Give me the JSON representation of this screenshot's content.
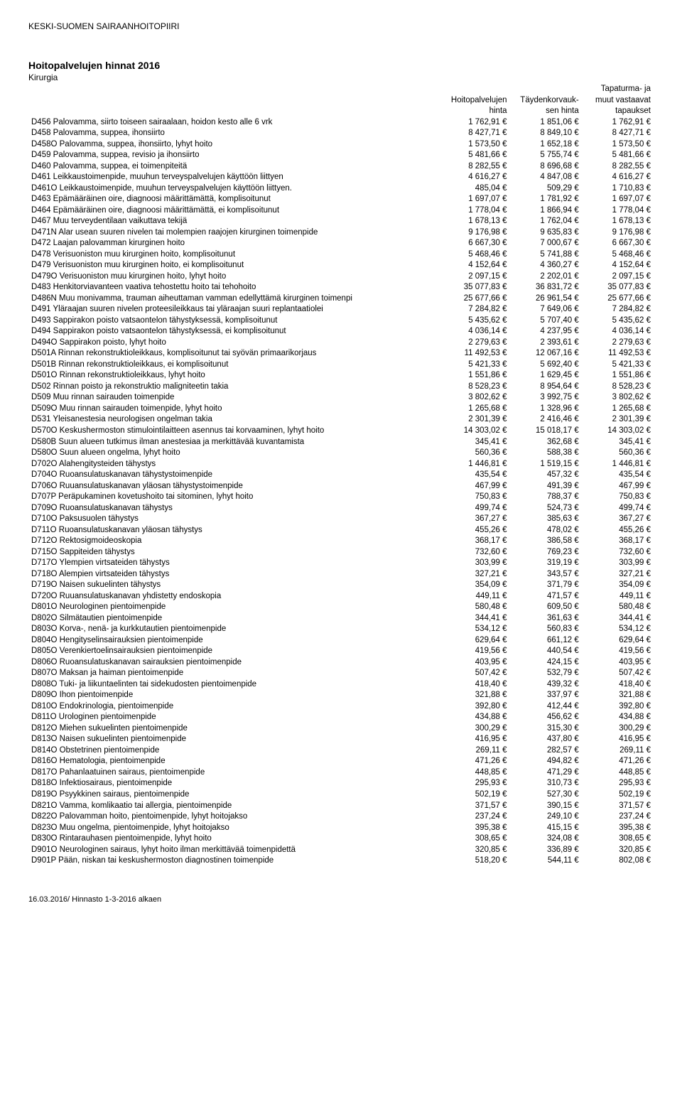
{
  "header": "KESKI-SUOMEN SAIRAANHOITOPIIRI",
  "title": "Hoitopalvelujen hinnat 2016",
  "subtitle": "Kirurgia",
  "columns": [
    {
      "l1": "",
      "l2": "Hoitopalvelujen",
      "l3": "hinta"
    },
    {
      "l1": "",
      "l2": "Täydenkorvauk-",
      "l3": "sen hinta"
    },
    {
      "l1": "Tapaturma- ja",
      "l2": "muut vastaavat",
      "l3": "tapaukset"
    }
  ],
  "rows": [
    {
      "desc": "D456 Palovamma, siirto toiseen sairaalaan, hoidon kesto alle 6 vrk",
      "c1": "1 762,91 €",
      "c2": "1 851,06 €",
      "c3": "1 762,91 €"
    },
    {
      "desc": "D458 Palovamma, suppea, ihonsiirto",
      "c1": "8 427,71 €",
      "c2": "8 849,10 €",
      "c3": "8 427,71 €"
    },
    {
      "desc": "D458O Palovamma, suppea, ihonsiirto, lyhyt hoito",
      "c1": "1 573,50 €",
      "c2": "1 652,18 €",
      "c3": "1 573,50 €"
    },
    {
      "desc": "D459 Palovamma, suppea, revisio ja ihonsiirto",
      "c1": "5 481,66 €",
      "c2": "5 755,74 €",
      "c3": "5 481,66 €"
    },
    {
      "desc": "D460 Palovamma, suppea, ei toimenpiteitä",
      "c1": "8 282,55 €",
      "c2": "8 696,68 €",
      "c3": "8 282,55 €"
    },
    {
      "desc": "D461 Leikkaustoimenpide, muuhun terveyspalvelujen käyttöön liittyen",
      "c1": "4 616,27 €",
      "c2": "4 847,08 €",
      "c3": "4 616,27 €"
    },
    {
      "desc": "D461O Leikkaustoimenpide, muuhun terveyspalvelujen käyttöön liittyen.",
      "c1": "485,04 €",
      "c2": "509,29 €",
      "c3": "1 710,83 €"
    },
    {
      "desc": "D463 Epämääräinen oire, diagnoosi määrittämättä, komplisoitunut",
      "c1": "1 697,07 €",
      "c2": "1 781,92 €",
      "c3": "1 697,07 €"
    },
    {
      "desc": "D464 Epämääräinen oire, diagnoosi määrittämättä, ei komplisoitunut",
      "c1": "1 778,04 €",
      "c2": "1 866,94 €",
      "c3": "1 778,04 €"
    },
    {
      "desc": "D467 Muu terveydentilaan vaikuttava tekijä",
      "c1": "1 678,13 €",
      "c2": "1 762,04 €",
      "c3": "1 678,13 €"
    },
    {
      "desc": "D471N Alar usean suuren nivelen tai molempien raajojen kirurginen toimenpide",
      "c1": "9 176,98 €",
      "c2": "9 635,83 €",
      "c3": "9 176,98 €"
    },
    {
      "desc": "D472 Laajan palovamman kirurginen hoito",
      "c1": "6 667,30 €",
      "c2": "7 000,67 €",
      "c3": "6 667,30 €"
    },
    {
      "desc": "D478 Verisuoniston muu kirurginen hoito, komplisoitunut",
      "c1": "5 468,46 €",
      "c2": "5 741,88 €",
      "c3": "5 468,46 €"
    },
    {
      "desc": "D479 Verisuoniston muu kirurginen hoito, ei komplisoitunut",
      "c1": "4 152,64 €",
      "c2": "4 360,27 €",
      "c3": "4 152,64 €"
    },
    {
      "desc": "D479O Verisuoniston muu kirurginen hoito, lyhyt hoito",
      "c1": "2 097,15 €",
      "c2": "2 202,01 €",
      "c3": "2 097,15 €"
    },
    {
      "desc": "D483 Henkitorviavanteen vaativa tehostettu hoito tai tehohoito",
      "c1": "35 077,83 €",
      "c2": "36 831,72 €",
      "c3": "35 077,83 €"
    },
    {
      "desc": "D486N Muu monivamma, trauman aiheuttaman vamman edellyttämä kirurginen toimenpi",
      "c1": "25 677,66 €",
      "c2": "26 961,54 €",
      "c3": "25 677,66 €"
    },
    {
      "desc": "D491 Yläraajan suuren nivelen proteesileikkaus tai yläraajan suuri replantaatiolei",
      "c1": "7 284,82 €",
      "c2": "7 649,06 €",
      "c3": "7 284,82 €"
    },
    {
      "desc": "D493 Sappirakon poisto vatsaontelon tähystyksessä, komplisoitunut",
      "c1": "5 435,62 €",
      "c2": "5 707,40 €",
      "c3": "5 435,62 €"
    },
    {
      "desc": "D494 Sappirakon poisto vatsaontelon tähystyksessä, ei komplisoitunut",
      "c1": "4 036,14 €",
      "c2": "4 237,95 €",
      "c3": "4 036,14 €"
    },
    {
      "desc": "D494O Sappirakon poisto, lyhyt hoito",
      "c1": "2 279,63 €",
      "c2": "2 393,61 €",
      "c3": "2 279,63 €"
    },
    {
      "desc": "D501A Rinnan rekonstruktioleikkaus, komplisoitunut tai syövän primaarikorjaus",
      "c1": "11 492,53 €",
      "c2": "12 067,16 €",
      "c3": "11 492,53 €"
    },
    {
      "desc": "D501B Rinnan rekonstruktioleikkaus, ei komplisoitunut",
      "c1": "5 421,33 €",
      "c2": "5 692,40 €",
      "c3": "5 421,33 €"
    },
    {
      "desc": "D501O Rinnan rekonstruktioleikkaus, lyhyt hoito",
      "c1": "1 551,86 €",
      "c2": "1 629,45 €",
      "c3": "1 551,86 €"
    },
    {
      "desc": "D502 Rinnan poisto ja rekonstruktio maligniteetin takia",
      "c1": "8 528,23 €",
      "c2": "8 954,64 €",
      "c3": "8 528,23 €"
    },
    {
      "desc": "D509 Muu rinnan sairauden toimenpide",
      "c1": "3 802,62 €",
      "c2": "3 992,75 €",
      "c3": "3 802,62 €"
    },
    {
      "desc": "D509O Muu rinnan sairauden toimenpide, lyhyt hoito",
      "c1": "1 265,68 €",
      "c2": "1 328,96 €",
      "c3": "1 265,68 €"
    },
    {
      "desc": "D531 Yleisanestesia neurologisen ongelman takia",
      "c1": "2 301,39 €",
      "c2": "2 416,46 €",
      "c3": "2 301,39 €"
    },
    {
      "desc": "D570O Keskushermoston stimulointilaitteen asennus tai korvaaminen, lyhyt hoito",
      "c1": "14 303,02 €",
      "c2": "15 018,17 €",
      "c3": "14 303,02 €"
    },
    {
      "desc": "D580B Suun alueen tutkimus ilman anestesiaa ja merkittävää kuvantamista",
      "c1": "345,41 €",
      "c2": "362,68 €",
      "c3": "345,41 €"
    },
    {
      "desc": "D580O Suun alueen ongelma, lyhyt hoito",
      "c1": "560,36 €",
      "c2": "588,38 €",
      "c3": "560,36 €"
    },
    {
      "desc": "D702O Alahengitysteiden tähystys",
      "c1": "1 446,81 €",
      "c2": "1 519,15 €",
      "c3": "1 446,81 €"
    },
    {
      "desc": "D704O Ruoansulatuskanavan tähystystoimenpide",
      "c1": "435,54 €",
      "c2": "457,32 €",
      "c3": "435,54 €"
    },
    {
      "desc": "D706O Ruuansulatuskanavan yläosan tähystystoimenpide",
      "c1": "467,99 €",
      "c2": "491,39 €",
      "c3": "467,99 €"
    },
    {
      "desc": "D707P Peräpukaminen kovetushoito tai sitominen, lyhyt hoito",
      "c1": "750,83 €",
      "c2": "788,37 €",
      "c3": "750,83 €"
    },
    {
      "desc": "D709O Ruoansulatuskanavan tähystys",
      "c1": "499,74 €",
      "c2": "524,73 €",
      "c3": "499,74 €"
    },
    {
      "desc": "D710O Paksusuolen tähystys",
      "c1": "367,27 €",
      "c2": "385,63 €",
      "c3": "367,27 €"
    },
    {
      "desc": "D711O Ruoansulatuskanavan yläosan tähystys",
      "c1": "455,26 €",
      "c2": "478,02 €",
      "c3": "455,26 €"
    },
    {
      "desc": "D712O Rektosigmoideoskopia",
      "c1": "368,17 €",
      "c2": "386,58 €",
      "c3": "368,17 €"
    },
    {
      "desc": "D715O Sappiteiden tähystys",
      "c1": "732,60 €",
      "c2": "769,23 €",
      "c3": "732,60 €"
    },
    {
      "desc": "D717O Ylempien virtsateiden tähystys",
      "c1": "303,99 €",
      "c2": "319,19 €",
      "c3": "303,99 €"
    },
    {
      "desc": "D718O Alempien virtsateiden tähystys",
      "c1": "327,21 €",
      "c2": "343,57 €",
      "c3": "327,21 €"
    },
    {
      "desc": "D719O Naisen sukuelinten tähystys",
      "c1": "354,09 €",
      "c2": "371,79 €",
      "c3": "354,09 €"
    },
    {
      "desc": "D720O Ruuansulatuskanavan yhdistetty endoskopia",
      "c1": "449,11 €",
      "c2": "471,57 €",
      "c3": "449,11 €"
    },
    {
      "desc": "D801O Neurologinen pientoimenpide",
      "c1": "580,48 €",
      "c2": "609,50 €",
      "c3": "580,48 €"
    },
    {
      "desc": "D802O Silmätautien pientoimenpide",
      "c1": "344,41 €",
      "c2": "361,63 €",
      "c3": "344,41 €"
    },
    {
      "desc": "D803O Korva-, nenä-  ja kurkkutautien pientoimenpide",
      "c1": "534,12 €",
      "c2": "560,83 €",
      "c3": "534,12 €"
    },
    {
      "desc": "D804O Hengityselinsairauksien pientoimenpide",
      "c1": "629,64 €",
      "c2": "661,12 €",
      "c3": "629,64 €"
    },
    {
      "desc": "D805O Verenkiertoelinsairauksien pientoimenpide",
      "c1": "419,56 €",
      "c2": "440,54 €",
      "c3": "419,56 €"
    },
    {
      "desc": "D806O Ruoansulatuskanavan sairauksien pientoimenpide",
      "c1": "403,95 €",
      "c2": "424,15 €",
      "c3": "403,95 €"
    },
    {
      "desc": "D807O Maksan ja haiman pientoimenpide",
      "c1": "507,42 €",
      "c2": "532,79 €",
      "c3": "507,42 €"
    },
    {
      "desc": "D808O Tuki- ja liikuntaelinten tai sidekudosten pientoimenpide",
      "c1": "418,40 €",
      "c2": "439,32 €",
      "c3": "418,40 €"
    },
    {
      "desc": "D809O Ihon pientoimenpide",
      "c1": "321,88 €",
      "c2": "337,97 €",
      "c3": "321,88 €"
    },
    {
      "desc": "D810O Endokrinologia, pientoimenpide",
      "c1": "392,80 €",
      "c2": "412,44 €",
      "c3": "392,80 €"
    },
    {
      "desc": "D811O Urologinen pientoimenpide",
      "c1": "434,88 €",
      "c2": "456,62 €",
      "c3": "434,88 €"
    },
    {
      "desc": "D812O Miehen sukuelinten pientoimenpide",
      "c1": "300,29 €",
      "c2": "315,30 €",
      "c3": "300,29 €"
    },
    {
      "desc": "D813O Naisen sukuelinten pientoimenpide",
      "c1": "416,95 €",
      "c2": "437,80 €",
      "c3": "416,95 €"
    },
    {
      "desc": "D814O Obstetrinen pientoimenpide",
      "c1": "269,11 €",
      "c2": "282,57 €",
      "c3": "269,11 €"
    },
    {
      "desc": "D816O Hematologia, pientoimenpide",
      "c1": "471,26 €",
      "c2": "494,82 €",
      "c3": "471,26 €"
    },
    {
      "desc": "D817O Pahanlaatuinen sairaus, pientoimenpide",
      "c1": "448,85 €",
      "c2": "471,29 €",
      "c3": "448,85 €"
    },
    {
      "desc": "D818O Infektiosairaus, pientoimenpide",
      "c1": "295,93 €",
      "c2": "310,73 €",
      "c3": "295,93 €"
    },
    {
      "desc": "D819O Psyykkinen sairaus, pientoimenpide",
      "c1": "502,19 €",
      "c2": "527,30 €",
      "c3": "502,19 €"
    },
    {
      "desc": "D821O Vamma, komlikaatio tai allergia, pientoimenpide",
      "c1": "371,57 €",
      "c2": "390,15 €",
      "c3": "371,57 €"
    },
    {
      "desc": "D822O Palovamman hoito, pientoimenpide, lyhyt hoitojakso",
      "c1": "237,24 €",
      "c2": "249,10 €",
      "c3": "237,24 €"
    },
    {
      "desc": "D823O Muu ongelma, pientoimenpide, lyhyt hoitojakso",
      "c1": "395,38 €",
      "c2": "415,15 €",
      "c3": "395,38 €"
    },
    {
      "desc": "D830O Rintarauhasen pientoimenpide, lyhyt hoito",
      "c1": "308,65 €",
      "c2": "324,08 €",
      "c3": "308,65 €"
    },
    {
      "desc": "D901O Neurologinen sairaus, lyhyt hoito ilman merkittävää toimenpidettä",
      "c1": "320,85 €",
      "c2": "336,89 €",
      "c3": "320,85 €"
    },
    {
      "desc": "D901P Pään, niskan tai keskushermoston diagnostinen toimenpide",
      "c1": "518,20 €",
      "c2": "544,11 €",
      "c3": "802,08 €"
    }
  ],
  "footer": "16.03.2016/ Hinnasto 1-3-2016 alkaen"
}
